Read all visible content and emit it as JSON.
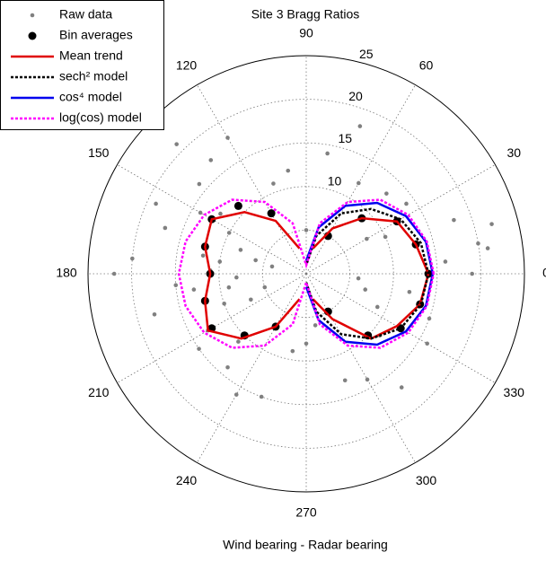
{
  "chart_data": {
    "type": "polar",
    "title": "Site 3 Bragg Ratios",
    "xlabel": "Wind bearing - Radar bearing",
    "rlim": [
      0,
      25
    ],
    "rgrid": [
      5,
      10,
      15,
      20,
      25
    ],
    "rticks": [
      10,
      15,
      20,
      25
    ],
    "thetaticks": [
      0,
      30,
      60,
      90,
      120,
      150,
      180,
      210,
      240,
      270,
      300,
      330
    ],
    "legend": "upper left",
    "series": [
      {
        "name": "Raw data",
        "style": "dots",
        "color": "#808080",
        "theta": [
          170,
          185,
          160,
          195,
          150,
          200,
          175,
          140,
          210,
          165,
          190,
          130,
          225,
          180,
          155,
          205,
          145,
          215,
          172,
          188,
          135,
          230,
          162,
          198,
          178,
          120,
          240,
          168,
          183,
          152,
          5,
          -10,
          20,
          -25,
          35,
          -40,
          10,
          -5,
          45,
          -50,
          15,
          -20,
          30,
          60,
          -60,
          0,
          25,
          -15,
          8,
          -30,
          90,
          270,
          100,
          260,
          80,
          280,
          110,
          250,
          70,
          290
        ],
        "values": [
          12,
          15,
          8,
          18,
          14,
          10,
          20,
          16,
          13,
          6,
          9,
          17,
          11,
          22,
          19,
          7,
          12,
          15,
          10,
          13,
          21,
          14,
          17,
          5,
          11,
          18,
          16,
          4,
          8,
          10,
          16,
          12,
          18,
          9,
          14,
          11,
          20,
          6,
          13,
          17,
          22,
          15,
          8,
          12,
          14,
          19,
          10,
          7,
          21,
          16,
          5,
          8,
          12,
          9,
          14,
          6,
          11,
          15,
          18,
          13
        ]
      },
      {
        "name": "Bin averages",
        "style": "markers",
        "color": "#000000",
        "theta": [
          -60,
          -45,
          -30,
          -15,
          0,
          15,
          30,
          45,
          60,
          120,
          135,
          150,
          165,
          180,
          195,
          210,
          225,
          240
        ],
        "values": [
          5,
          10,
          12.5,
          13.5,
          14,
          13,
          12,
          9,
          5,
          8,
          11,
          12.5,
          12,
          11,
          12,
          12.5,
          10,
          7
        ]
      },
      {
        "name": "Mean trend",
        "style": "solid",
        "color": "#e00000",
        "theta": [
          -75,
          -60,
          -45,
          -30,
          -15,
          0,
          15,
          30,
          45,
          60,
          75,
          90,
          105,
          120,
          135,
          150,
          165,
          180,
          195,
          210,
          225,
          240,
          255
        ],
        "values": [
          3,
          6,
          10.5,
          12,
          13.5,
          14,
          13,
          12,
          9,
          6,
          3,
          null,
          3,
          7,
          10,
          12.5,
          12,
          11,
          12,
          13,
          10.5,
          7,
          3
        ]
      },
      {
        "name": "sech² model",
        "style": "dashed",
        "color": "#000000",
        "theta": [
          -90,
          -75,
          -60,
          -45,
          -30,
          -15,
          0,
          15,
          30,
          45,
          60,
          75,
          90
        ],
        "values": [
          1,
          4.5,
          8,
          10.5,
          12.5,
          13.6,
          14,
          13.6,
          12.5,
          10.5,
          8,
          4.5,
          1
        ]
      },
      {
        "name": "cos⁴ model",
        "style": "solid",
        "color": "#0000ee",
        "theta": [
          -90,
          -75,
          -60,
          -45,
          -30,
          -15,
          0,
          15,
          30,
          45,
          60,
          75,
          90
        ],
        "values": [
          1.5,
          5.5,
          9,
          11.5,
          13.2,
          14.2,
          14.5,
          14.2,
          13.2,
          11.5,
          9,
          5.5,
          1.5
        ]
      },
      {
        "name": "log(cos) model",
        "style": "dashed",
        "color": "#ff00ff",
        "theta": [
          0,
          15,
          30,
          45,
          60,
          75,
          90,
          105,
          120,
          135,
          150,
          165,
          180,
          195,
          210,
          225,
          240,
          255,
          270,
          285,
          300,
          315,
          330,
          345,
          360
        ],
        "values": [
          14.6,
          14.3,
          13.5,
          12,
          9.5,
          6,
          1,
          6,
          9.5,
          12,
          13.5,
          14.3,
          14.6,
          14.3,
          13.5,
          12,
          9.5,
          6,
          1,
          6,
          9.5,
          12,
          13.5,
          14.3,
          14.6
        ]
      }
    ]
  }
}
